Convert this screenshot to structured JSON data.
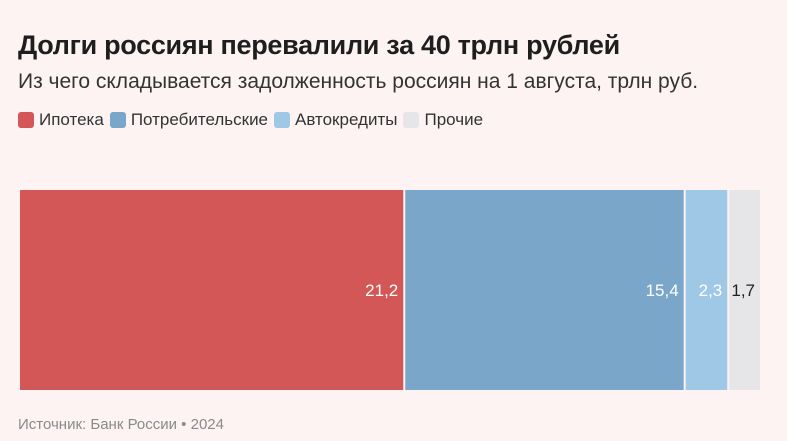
{
  "header": {
    "title": "Долги россиян перевалили за 40 трлн рублей",
    "subtitle": "Из чего складывается задолженность россиян на 1 августа, трлн руб."
  },
  "footer": {
    "source": "Источник: Банк России • 2024"
  },
  "chart_data": {
    "type": "bar",
    "orientation": "horizontal-stacked-100",
    "title": "Долги россиян перевалили за 40 трлн рублей",
    "subtitle": "Из чего складывается задолженность россиян на 1 августа, трлн руб.",
    "legend_position": "top-left",
    "grid": false,
    "series": [
      {
        "name": "Ипотека",
        "value": 21.2,
        "label": "21,2",
        "color": "#d45757",
        "label_color": "#ffffff"
      },
      {
        "name": "Потребительские",
        "value": 15.4,
        "label": "15,4",
        "color": "#7aa7c9",
        "label_color": "#ffffff"
      },
      {
        "name": "Автокредиты",
        "value": 2.3,
        "label": "2,3",
        "color": "#9ec8e6",
        "label_color": "#ffffff"
      },
      {
        "name": "Прочие",
        "value": 1.7,
        "label": "1,7",
        "color": "#e6e6e8",
        "label_color": "#1f1f1f"
      }
    ]
  }
}
